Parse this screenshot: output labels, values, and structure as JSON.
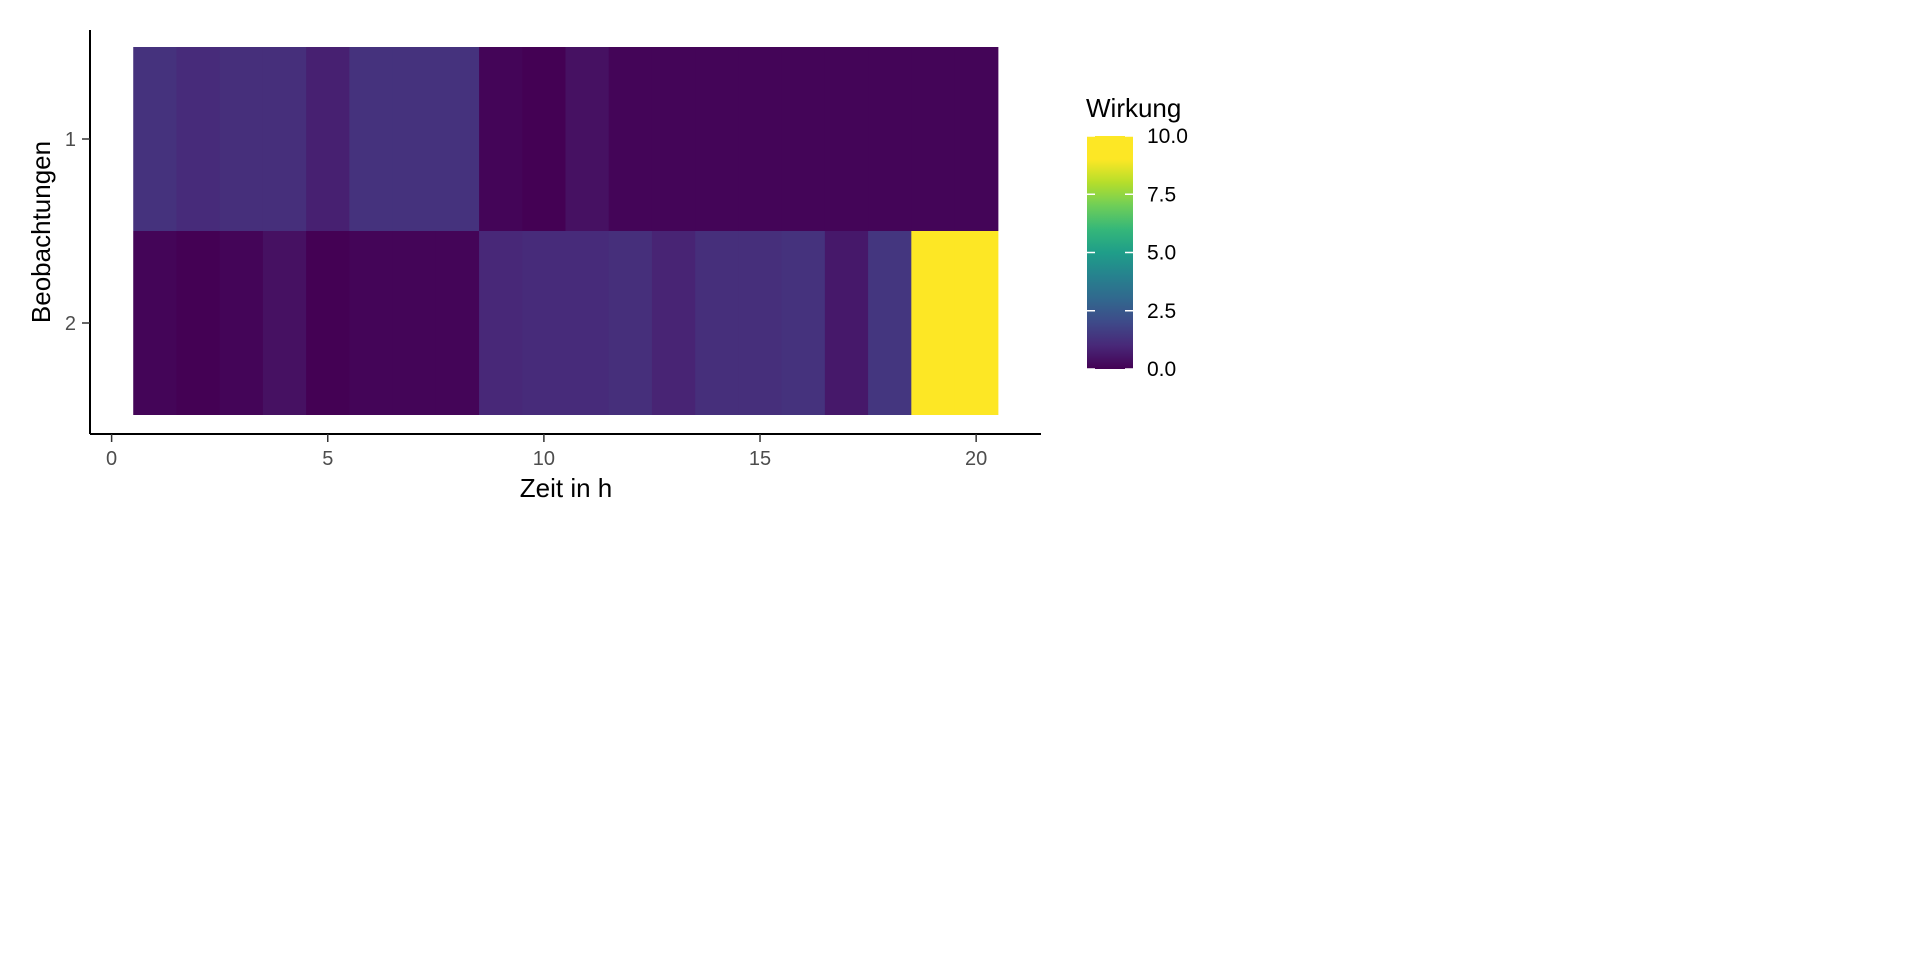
{
  "chart_data": {
    "type": "heatmap",
    "xlabel": "Zeit in h",
    "ylabel": "Beobachtungen",
    "x": [
      1,
      2,
      3,
      4,
      5,
      6,
      7,
      8,
      9,
      10,
      11,
      12,
      13,
      14,
      15,
      16,
      17,
      18,
      19,
      20
    ],
    "xlim": [
      -0.5,
      21.5
    ],
    "x_ticks": [
      0,
      5,
      10,
      15,
      20
    ],
    "x_tick_labels": [
      "0",
      "5",
      "10",
      "15",
      "20"
    ],
    "y_categories": [
      "1",
      "2"
    ],
    "rows": [
      {
        "category": "1",
        "values": [
          1.3,
          1.1,
          1.2,
          1.2,
          0.8,
          1.3,
          1.3,
          1.3,
          0.1,
          0.0,
          0.4,
          0.1,
          0.1,
          0.1,
          0.1,
          0.1,
          0.1,
          0.1,
          0.1,
          0.1
        ]
      },
      {
        "category": "2",
        "values": [
          0.1,
          0.0,
          0.1,
          0.4,
          0.0,
          0.1,
          0.1,
          0.1,
          1.0,
          1.1,
          1.1,
          1.2,
          0.9,
          1.2,
          1.2,
          1.3,
          0.6,
          1.4,
          10.0,
          9.0
        ]
      }
    ],
    "legend": {
      "title": "Wirkung",
      "ticks": [
        0.0,
        2.5,
        5.0,
        7.5,
        10.0
      ],
      "tick_labels": [
        "0.0",
        "2.5",
        "5.0",
        "7.5",
        "10.0"
      ],
      "range": [
        0,
        10
      ],
      "placement": "right",
      "palette": "viridis"
    },
    "grid": false
  }
}
